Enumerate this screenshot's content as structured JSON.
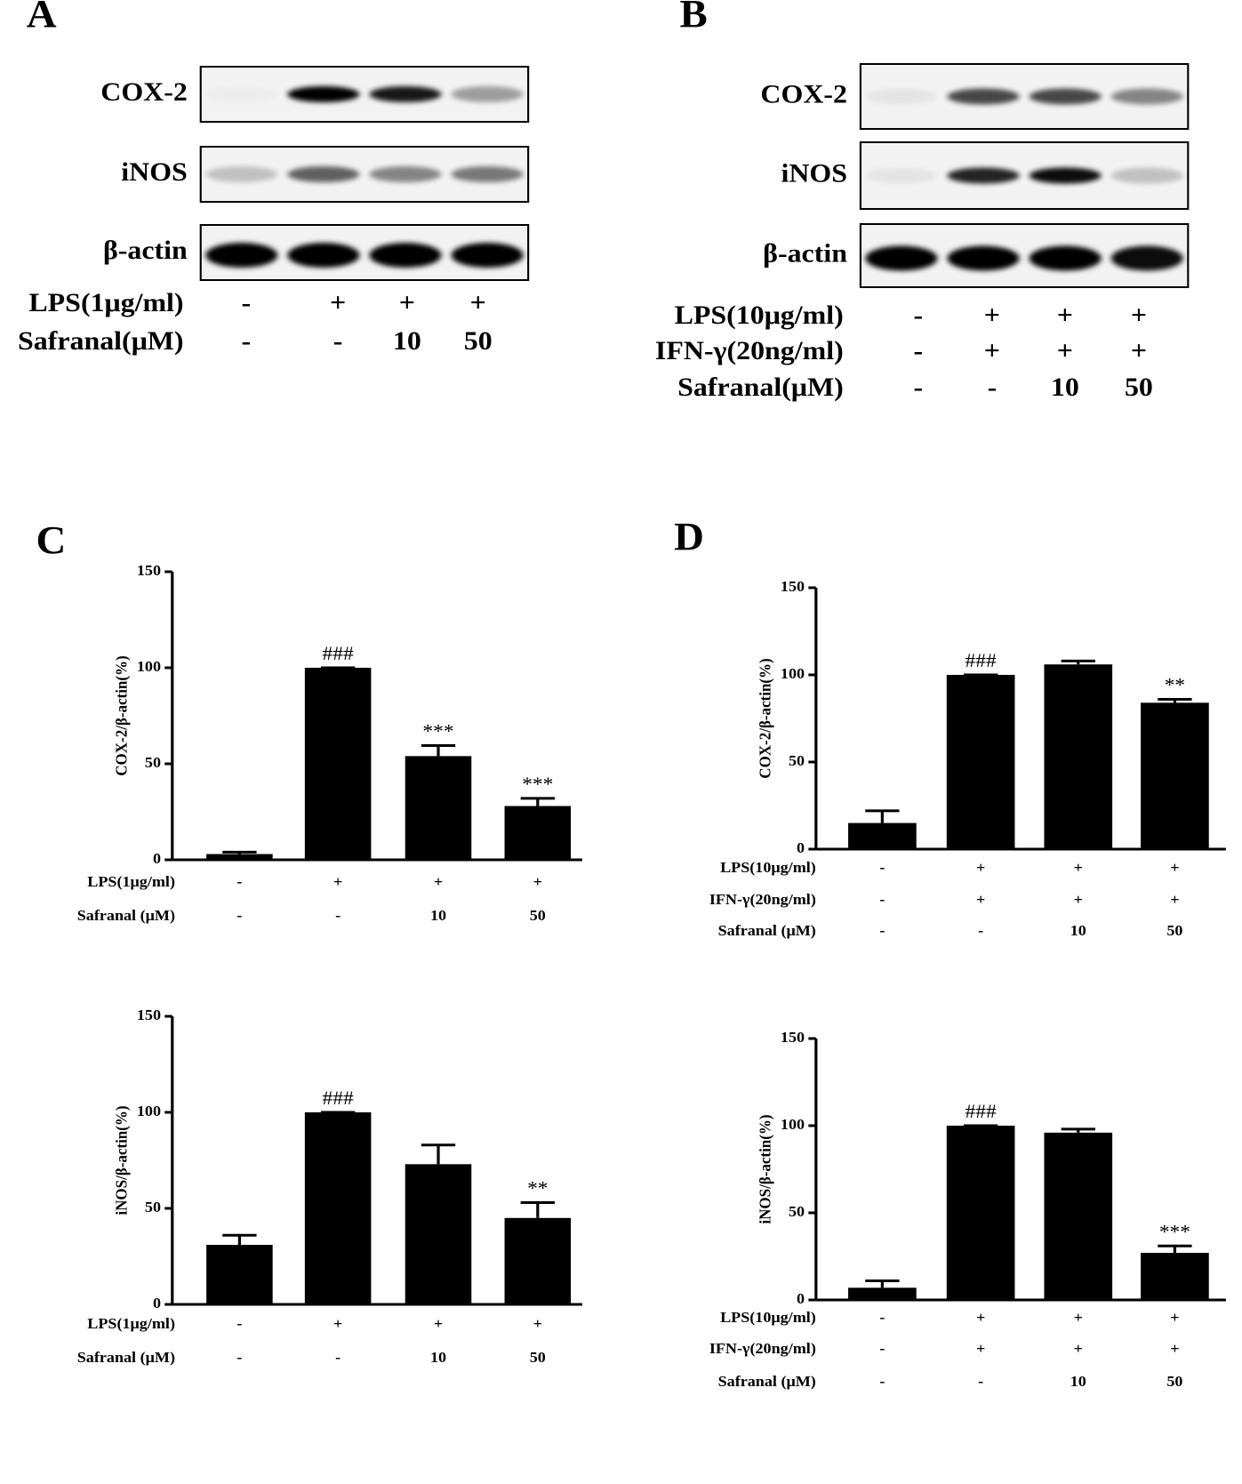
{
  "panels": [
    "A",
    "B",
    "C",
    "D"
  ],
  "blots": [
    {
      "proteins": [
        "COX-2",
        "iNOS",
        "β-actin"
      ],
      "treatments": [
        {
          "label": "LPS(1μg/ml)",
          "values": [
            "-",
            "+",
            "+",
            "+"
          ]
        },
        {
          "label": "Safranal(μM)",
          "values": [
            "-",
            "-",
            "10",
            "50"
          ]
        }
      ]
    },
    {
      "proteins": [
        "COX-2",
        "iNOS",
        "β-actin"
      ],
      "treatments": [
        {
          "label": "LPS(10μg/ml)",
          "values": [
            "-",
            "+",
            "+",
            "+"
          ]
        },
        {
          "label": "IFN-γ(20ng/ml)",
          "values": [
            "-",
            "+",
            "+",
            "+"
          ]
        },
        {
          "label": "Safranal(μM)",
          "values": [
            "-",
            "-",
            "10",
            "50"
          ]
        }
      ]
    }
  ],
  "chart_data": [
    {
      "type": "bar",
      "y_label": "COX-2/β-actin(%)",
      "categories": [
        null,
        null,
        null,
        null
      ],
      "values": [
        3,
        100,
        54,
        28
      ],
      "errors": [
        1,
        0,
        5.5,
        4
      ],
      "color": "#000000",
      "annotations": [
        null,
        "###",
        "***",
        "***"
      ],
      "ylim": [
        0,
        150
      ],
      "yticks": [
        0,
        50,
        100,
        150
      ],
      "treatments": [
        {
          "label": "LPS(1μg/ml)",
          "values": [
            "-",
            "+",
            "+",
            "+"
          ]
        },
        {
          "label": "Safranal (μM)",
          "values": [
            "-",
            "-",
            "10",
            "50"
          ]
        }
      ]
    },
    {
      "type": "bar",
      "y_label": "iNOS/β-actin(%)",
      "categories": [
        null,
        null,
        null,
        null
      ],
      "values": [
        31,
        100,
        73,
        45
      ],
      "errors": [
        5,
        0,
        10,
        8
      ],
      "color": "#000000",
      "annotations": [
        null,
        "###",
        null,
        "**"
      ],
      "ylim": [
        0,
        150
      ],
      "yticks": [
        0,
        50,
        100,
        150
      ],
      "treatments": [
        {
          "label": "LPS(1μg/ml)",
          "values": [
            "-",
            "+",
            "+",
            "+"
          ]
        },
        {
          "label": "Safranal (μM)",
          "values": [
            "-",
            "-",
            "10",
            "50"
          ]
        }
      ]
    },
    {
      "type": "bar",
      "y_label": "COX-2/β-actin(%)",
      "categories": [
        null,
        null,
        null,
        null
      ],
      "values": [
        15,
        100,
        106,
        84
      ],
      "errors": [
        7,
        0,
        2,
        2
      ],
      "color": "#000000",
      "annotations": [
        null,
        "###",
        null,
        "**"
      ],
      "ylim": [
        0,
        150
      ],
      "yticks": [
        0,
        50,
        100,
        150
      ],
      "treatments": [
        {
          "label": "LPS(10μg/ml)",
          "values": [
            "-",
            "+",
            "+",
            "+"
          ]
        },
        {
          "label": "IFN-γ(20ng/ml)",
          "values": [
            "-",
            "+",
            "+",
            "+"
          ]
        },
        {
          "label": "Safranal (μM)",
          "values": [
            "-",
            "-",
            "10",
            "50"
          ]
        }
      ]
    },
    {
      "type": "bar",
      "y_label": "iNOS/β-actin(%)",
      "categories": [
        null,
        null,
        null,
        null
      ],
      "values": [
        7,
        100,
        96,
        27
      ],
      "errors": [
        4,
        0,
        2,
        4
      ],
      "color": "#000000",
      "annotations": [
        null,
        "###",
        null,
        "***"
      ],
      "ylim": [
        0,
        150
      ],
      "yticks": [
        0,
        50,
        100,
        150
      ],
      "treatments": [
        {
          "label": "LPS(10μg/ml)",
          "values": [
            "-",
            "+",
            "+",
            "+"
          ]
        },
        {
          "label": "IFN-γ(20ng/ml)",
          "values": [
            "-",
            "+",
            "+",
            "+"
          ]
        },
        {
          "label": "Safranal (μM)",
          "values": [
            "-",
            "-",
            "10",
            "50"
          ]
        }
      ]
    }
  ]
}
